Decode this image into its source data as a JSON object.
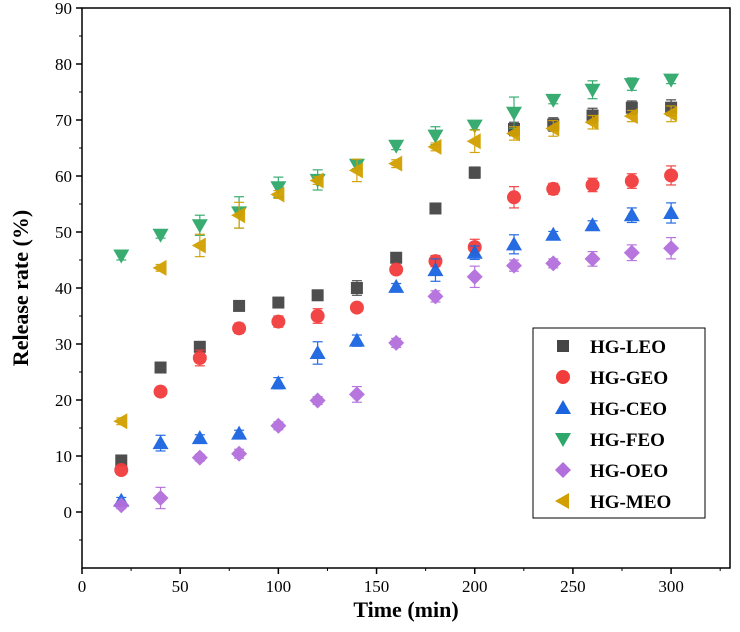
{
  "chart_data": {
    "type": "scatter",
    "title": "",
    "xlabel": "Time (min)",
    "ylabel": "Release rate (%)",
    "xlim": [
      0,
      330
    ],
    "ylim": [
      -10,
      90
    ],
    "xticks": [
      0,
      50,
      100,
      150,
      200,
      250,
      300
    ],
    "yticks": [
      0,
      10,
      20,
      30,
      40,
      50,
      60,
      70,
      80,
      90
    ],
    "legend_position": "bottom-right",
    "grid": false,
    "x": [
      20,
      40,
      60,
      80,
      100,
      120,
      140,
      160,
      180,
      200,
      220,
      240,
      260,
      280,
      300
    ],
    "series": [
      {
        "name": "HG-LEO",
        "marker": "square",
        "color": "#454545",
        "values": [
          9.2,
          25.8,
          29.5,
          36.8,
          37.4,
          38.7,
          40,
          45.4,
          54.2,
          60.6,
          68.4,
          69.2,
          70.8,
          72.2,
          72.2
        ],
        "error": [
          0.6,
          0.6,
          0.6,
          0.8,
          0.6,
          0.6,
          1.3,
          0.6,
          0.6,
          1.0,
          1.2,
          1.2,
          1.3,
          1.2,
          1.4
        ]
      },
      {
        "name": "HG-GEO",
        "marker": "circle",
        "color": "#f23c3c",
        "values": [
          7.5,
          21.5,
          27.5,
          32.8,
          34,
          35,
          36.5,
          43.3,
          44.8,
          47.3,
          56.2,
          57.7,
          58.4,
          59.1,
          60.1
        ],
        "error": [
          0.6,
          0.8,
          1.4,
          0.9,
          1.0,
          1.3,
          0.6,
          0.8,
          1.0,
          1.4,
          1.9,
          1.0,
          1.2,
          1.3,
          1.7
        ]
      },
      {
        "name": "HG-CEO",
        "marker": "triangle-up",
        "color": "#1a64e0",
        "values": [
          2,
          12.3,
          13.2,
          14,
          23,
          28.4,
          30.6,
          40.2,
          43.2,
          46.3,
          47.8,
          49.5,
          51.2,
          53,
          53.4
        ],
        "error": [
          0.6,
          1.4,
          0.6,
          0.6,
          1.0,
          2.0,
          1.0,
          0.6,
          2.0,
          1.2,
          1.7,
          0.6,
          0.8,
          1.3,
          1.8
        ]
      },
      {
        "name": "HG-FEO",
        "marker": "triangle-down",
        "color": "#2ea86a",
        "values": [
          45.8,
          49.5,
          51.2,
          53.5,
          58,
          59.3,
          62,
          65.4,
          67.2,
          69,
          71.3,
          73.6,
          75.4,
          76.4,
          77.2
        ],
        "error": [
          0.8,
          0.6,
          1.8,
          2.8,
          1.8,
          1.8,
          0.7,
          0.7,
          1.6,
          0.7,
          2.8,
          0.7,
          1.6,
          1.1,
          0.7
        ]
      },
      {
        "name": "HG-OEO",
        "marker": "diamond",
        "color": "#b36fdc",
        "values": [
          1.2,
          2.5,
          9.7,
          10.4,
          15.4,
          19.9,
          21,
          30.2,
          38.5,
          42,
          44,
          44.4,
          45.2,
          46.3,
          47.1
        ],
        "error": [
          0.6,
          1.9,
          0.6,
          0.8,
          0.7,
          0.7,
          1.4,
          0.8,
          1.0,
          1.9,
          1.0,
          0.8,
          1.3,
          1.4,
          1.9
        ]
      },
      {
        "name": "HG-MEO",
        "marker": "triangle-left",
        "color": "#d1a000",
        "values": [
          16.2,
          43.6,
          47.6,
          53,
          56.7,
          59.2,
          61,
          62.2,
          65.2,
          66.2,
          67.6,
          68.5,
          69.6,
          70.7,
          71.1
        ],
        "error": [
          0.6,
          0.6,
          2.0,
          2.3,
          0.7,
          0.7,
          2.0,
          0.7,
          0.7,
          2.0,
          1.2,
          1.4,
          1.2,
          1.0,
          1.4
        ]
      }
    ]
  }
}
